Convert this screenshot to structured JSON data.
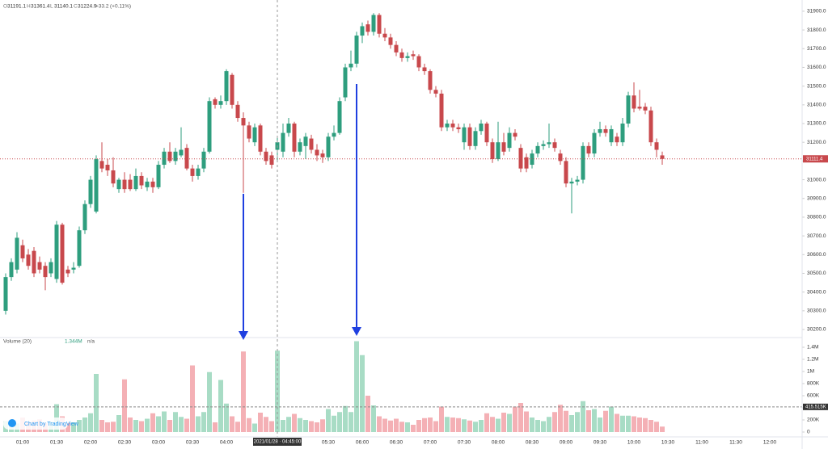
{
  "chart_data": {
    "type": "candlestick",
    "legend": {
      "items": [
        {
          "label": "O",
          "value": 31191.1
        },
        {
          "label": "H",
          "value": 31361.4
        },
        {
          "label": "L",
          "value": 31140.1
        },
        {
          "label": "C",
          "value": 31224.9
        }
      ],
      "change": "+33.2",
      "change_pct": "(+0.11%)"
    },
    "volume_legend": {
      "title": "Volume (20)",
      "value": "1.344M",
      "ma": "n/a"
    },
    "crosshair_label": "2021/01/28 · 04:45:00",
    "watermark": "Chart by TradingView",
    "up_color": "#2e9e7e",
    "down_color": "#c8484c",
    "vol_up_color": "#a8dcc5",
    "vol_down_color": "#f4b0b5",
    "ylim": [
      30157,
      31960
    ],
    "yticks": [
      {
        "value": 30200,
        "label": "30200.0"
      },
      {
        "value": 30300,
        "label": "30300.0"
      },
      {
        "value": 30400,
        "label": "30400.0"
      },
      {
        "value": 30500,
        "label": "30500.0"
      },
      {
        "value": 30600,
        "label": "30600.0"
      },
      {
        "value": 30700,
        "label": "30700.0"
      },
      {
        "value": 30800,
        "label": "30800.0"
      },
      {
        "value": 30900,
        "label": "30900.0"
      },
      {
        "value": 31000,
        "label": "31000.0"
      },
      {
        "value": 31100,
        "label": "31100.0"
      },
      {
        "value": 31200,
        "label": "31200.0"
      },
      {
        "value": 31300,
        "label": "31300.0"
      },
      {
        "value": 31400,
        "label": "31400.0"
      },
      {
        "value": 31500,
        "label": "31500.0"
      },
      {
        "value": 31600,
        "label": "31600.0"
      },
      {
        "value": 31700,
        "label": "31700.0"
      },
      {
        "value": 31800,
        "label": "31800.0"
      },
      {
        "value": 31900,
        "label": "31900.0"
      }
    ],
    "volume_ylim": [
      0,
      1560000
    ],
    "volume_yticks": [
      0,
      {
        "value": 200000,
        "label": "200K"
      },
      {
        "value": 400000,
        "label": "400K"
      },
      {
        "value": 600000,
        "label": "600K"
      },
      {
        "value": 800000,
        "label": "800K"
      },
      {
        "value": 1000000,
        "label": "1M"
      },
      {
        "value": 1200000,
        "label": "1.2M"
      },
      {
        "value": 1400000,
        "label": "1.4M"
      }
    ],
    "volume_ma": {
      "value": 415515,
      "label": "415.515K"
    },
    "time_labels": [
      "01:00",
      "01:30",
      "02:00",
      "02:30",
      "03:00",
      "03:30",
      "04:00",
      "05:30",
      "06:00",
      "06:30",
      "07:00",
      "07:30",
      "08:00",
      "08:30",
      "09:00",
      "09:30",
      "10:00",
      "10:30",
      "11:00",
      "11:30",
      "12:00"
    ],
    "ohlc": [
      [
        30300,
        30500,
        30280,
        30480
      ],
      [
        30480,
        30580,
        30460,
        30560
      ],
      [
        30520,
        30720,
        30500,
        30690
      ],
      [
        30650,
        30680,
        30560,
        30580
      ],
      [
        30600,
        30630,
        30520,
        30540
      ],
      [
        30620,
        30640,
        30480,
        30500
      ],
      [
        30560,
        30590,
        30500,
        30520
      ],
      [
        30540,
        30560,
        30410,
        30480
      ],
      [
        30500,
        30580,
        30480,
        30560
      ],
      [
        30470,
        30780,
        30450,
        30760
      ],
      [
        30760,
        30770,
        30440,
        30450
      ],
      [
        30520,
        30540,
        30480,
        30500
      ],
      [
        30520,
        30560,
        30500,
        30530
      ],
      [
        30540,
        30750,
        30530,
        30730
      ],
      [
        30730,
        30890,
        30710,
        30870
      ],
      [
        30870,
        31020,
        30850,
        31000
      ],
      [
        30830,
        31130,
        30820,
        31110
      ],
      [
        31100,
        31200,
        31040,
        31060
      ],
      [
        31080,
        31110,
        31020,
        31050
      ],
      [
        31050,
        31120,
        30960,
        30980
      ],
      [
        30950,
        31010,
        30930,
        31000
      ],
      [
        31000,
        31040,
        30930,
        30950
      ],
      [
        31000,
        31030,
        30940,
        30950
      ],
      [
        30950,
        31060,
        30940,
        31020
      ],
      [
        31020,
        31040,
        30950,
        30970
      ],
      [
        30960,
        31010,
        30940,
        30990
      ],
      [
        30990,
        31010,
        30930,
        30960
      ],
      [
        30960,
        31100,
        30950,
        31080
      ],
      [
        31080,
        31170,
        31060,
        31150
      ],
      [
        31150,
        31200,
        31090,
        31100
      ],
      [
        31100,
        31170,
        31080,
        31150
      ],
      [
        31130,
        31280,
        31120,
        31160
      ],
      [
        31170,
        31190,
        31050,
        31060
      ],
      [
        31060,
        31080,
        30990,
        31020
      ],
      [
        31020,
        31080,
        31000,
        31060
      ],
      [
        31060,
        31170,
        31040,
        31150
      ],
      [
        31150,
        31440,
        31140,
        31420
      ],
      [
        31430,
        31440,
        31380,
        31400
      ],
      [
        31400,
        31450,
        31380,
        31420
      ],
      [
        31420,
        31590,
        31400,
        31580
      ],
      [
        31560,
        31570,
        31380,
        31400
      ],
      [
        31400,
        31420,
        31310,
        31330
      ],
      [
        31330,
        31360,
        30930,
        31290
      ],
      [
        31290,
        31310,
        31200,
        31220
      ],
      [
        31200,
        31300,
        31180,
        31280
      ],
      [
        31290,
        31300,
        31130,
        31150
      ],
      [
        31150,
        31170,
        31080,
        31100
      ],
      [
        31130,
        31150,
        31060,
        31080
      ],
      [
        31160,
        31230,
        31100,
        31200
      ],
      [
        31150,
        31300,
        31120,
        31250
      ],
      [
        31250,
        31330,
        31230,
        31300
      ],
      [
        31300,
        31310,
        31120,
        31150
      ],
      [
        31150,
        31220,
        31130,
        31200
      ],
      [
        31180,
        31250,
        31110,
        31230
      ],
      [
        31220,
        31240,
        31140,
        31160
      ],
      [
        31160,
        31190,
        31100,
        31130
      ],
      [
        31140,
        31160,
        31090,
        31120
      ],
      [
        31120,
        31250,
        31100,
        31230
      ],
      [
        31230,
        31290,
        31210,
        31250
      ],
      [
        31250,
        31440,
        31240,
        31420
      ],
      [
        31440,
        31620,
        31420,
        31600
      ],
      [
        31600,
        31690,
        31580,
        31620
      ],
      [
        31620,
        31790,
        31600,
        31770
      ],
      [
        31770,
        31840,
        31730,
        31820
      ],
      [
        31830,
        31850,
        31770,
        31790
      ],
      [
        31790,
        31890,
        31770,
        31880
      ],
      [
        31880,
        31890,
        31760,
        31780
      ],
      [
        31780,
        31810,
        31740,
        31760
      ],
      [
        31760,
        31780,
        31700,
        31720
      ],
      [
        31720,
        31740,
        31660,
        31680
      ],
      [
        31680,
        31700,
        31630,
        31650
      ],
      [
        31650,
        31680,
        31630,
        31660
      ],
      [
        31670,
        31690,
        31640,
        31660
      ],
      [
        31660,
        31670,
        31580,
        31600
      ],
      [
        31600,
        31620,
        31560,
        31580
      ],
      [
        31580,
        31590,
        31460,
        31480
      ],
      [
        31480,
        31500,
        31440,
        31460
      ],
      [
        31460,
        31480,
        31260,
        31280
      ],
      [
        31280,
        31320,
        31260,
        31300
      ],
      [
        31300,
        31320,
        31260,
        31280
      ],
      [
        31280,
        31300,
        31250,
        31270
      ],
      [
        31200,
        31300,
        31160,
        31280
      ],
      [
        31280,
        31300,
        31160,
        31180
      ],
      [
        31180,
        31280,
        31160,
        31260
      ],
      [
        31260,
        31320,
        31240,
        31300
      ],
      [
        31300,
        31310,
        31180,
        31200
      ],
      [
        31200,
        31220,
        31090,
        31110
      ],
      [
        31110,
        31310,
        31100,
        31200
      ],
      [
        31200,
        31250,
        31130,
        31150
      ],
      [
        31170,
        31280,
        31150,
        31250
      ],
      [
        31250,
        31270,
        31210,
        31230
      ],
      [
        31170,
        31190,
        31040,
        31060
      ],
      [
        31120,
        31140,
        31040,
        31060
      ],
      [
        31080,
        31160,
        31060,
        31140
      ],
      [
        31140,
        31200,
        31120,
        31180
      ],
      [
        31180,
        31210,
        31160,
        31190
      ],
      [
        31190,
        31300,
        31170,
        31200
      ],
      [
        31200,
        31220,
        31150,
        31170
      ],
      [
        31140,
        31160,
        31080,
        31100
      ],
      [
        31100,
        31120,
        30960,
        30980
      ],
      [
        30980,
        31010,
        30820,
        30990
      ],
      [
        30990,
        31020,
        30970,
        31000
      ],
      [
        31000,
        31200,
        30980,
        31180
      ],
      [
        31180,
        31200,
        31120,
        31140
      ],
      [
        31140,
        31270,
        31120,
        31250
      ],
      [
        31250,
        31310,
        31230,
        31270
      ],
      [
        31270,
        31290,
        31230,
        31250
      ],
      [
        31200,
        31290,
        31180,
        31270
      ],
      [
        31230,
        31250,
        31180,
        31200
      ],
      [
        31200,
        31330,
        31180,
        31300
      ],
      [
        31300,
        31470,
        31280,
        31450
      ],
      [
        31450,
        31520,
        31360,
        31380
      ],
      [
        31390,
        31480,
        31370,
        31380
      ],
      [
        31390,
        31410,
        31350,
        31370
      ],
      [
        31370,
        31390,
        31180,
        31200
      ],
      [
        31200,
        31220,
        31120,
        31160
      ],
      [
        31130,
        31150,
        31080,
        31111.4
      ]
    ],
    "volume": [
      180000,
      150000,
      140000,
      240000,
      170000,
      190000,
      210000,
      150000,
      170000,
      460000,
      260000,
      150000,
      160000,
      200000,
      240000,
      310000,
      960000,
      200000,
      160000,
      170000,
      280000,
      870000,
      240000,
      200000,
      180000,
      220000,
      310000,
      260000,
      340000,
      200000,
      330000,
      250000,
      220000,
      1100000,
      260000,
      330000,
      990000,
      160000,
      860000,
      470000,
      260000,
      170000,
      1330000,
      230000,
      140000,
      320000,
      250000,
      180000,
      1344000,
      200000,
      250000,
      300000,
      230000,
      200000,
      180000,
      160000,
      210000,
      380000,
      270000,
      330000,
      430000,
      330000,
      1500000,
      1270000,
      600000,
      440000,
      260000,
      220000,
      190000,
      220000,
      170000,
      160000,
      120000,
      200000,
      230000,
      240000,
      180000,
      420000,
      250000,
      240000,
      230000,
      210000,
      190000,
      170000,
      200000,
      310000,
      250000,
      220000,
      320000,
      300000,
      420000,
      480000,
      340000,
      240000,
      200000,
      180000,
      250000,
      330000,
      450000,
      350000,
      280000,
      330000,
      510000,
      360000,
      380000,
      240000,
      350000,
      420000,
      300000,
      270000,
      270000,
      260000,
      240000,
      230000,
      200000,
      170000,
      90000
    ]
  }
}
